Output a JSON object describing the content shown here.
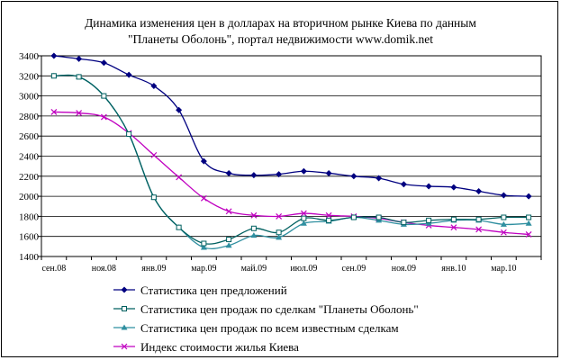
{
  "chart_data": {
    "type": "line",
    "title_line1": "Динамика изменения цен в долларах на вторичном рынке Киева по данным",
    "title_line2": "\"Планеты Оболонь\", портал недвижимости www.domik.net",
    "ylim": [
      1400,
      3400
    ],
    "yticks": [
      1400,
      1600,
      1800,
      2000,
      2200,
      2400,
      2600,
      2800,
      3000,
      3200,
      3400
    ],
    "grid": true,
    "legend_position": "bottom",
    "x_tick_labels": [
      "сен.08",
      "ноя.08",
      "янв.09",
      "мар.09",
      "май.09",
      "июл.09",
      "сен.09",
      "ноя.09",
      "янв.10",
      "мар.10"
    ],
    "x_count": 20,
    "series": [
      {
        "name": "Статистика   цен   предложений",
        "color": "#000080",
        "marker": "diamond",
        "values": [
          3400,
          3370,
          3330,
          3210,
          3100,
          2860,
          2350,
          2230,
          2210,
          2220,
          2250,
          2230,
          2200,
          2180,
          2120,
          2100,
          2090,
          2050,
          2010,
          2000
        ]
      },
      {
        "name": "Статистика   цен   продаж по сделкам \"Планеты Оболонь\"",
        "color": "#006060",
        "marker": "square",
        "values": [
          3200,
          3190,
          3000,
          2620,
          1990,
          1690,
          1530,
          1570,
          1680,
          1640,
          1780,
          1760,
          1790,
          1790,
          1740,
          1760,
          1770,
          1770,
          1790,
          1790
        ]
      },
      {
        "name": "Статистика   цен   продаж по всем известным сделкам",
        "color": "#2f8fa0",
        "marker": "triangle",
        "values": [
          3200,
          3190,
          3000,
          2620,
          1990,
          1690,
          1490,
          1510,
          1610,
          1590,
          1730,
          1750,
          1790,
          1760,
          1720,
          1730,
          1760,
          1760,
          1720,
          1730
        ]
      },
      {
        "name": "Индекс стоимости жилья Киева",
        "color": "#c000c0",
        "marker": "x",
        "values": [
          2840,
          2830,
          2790,
          2630,
          2410,
          2190,
          1980,
          1850,
          1810,
          1800,
          1830,
          1810,
          1800,
          1780,
          1740,
          1710,
          1690,
          1670,
          1640,
          1620
        ]
      }
    ]
  }
}
